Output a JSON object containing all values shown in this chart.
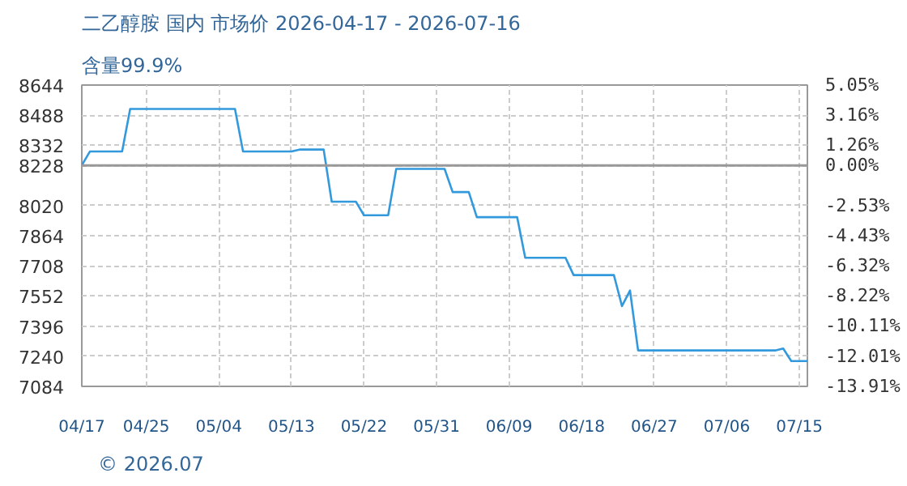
{
  "chart_data": {
    "type": "line",
    "title": "二乙醇胺 国内 市场价 2026-04-17 - 2026-07-16",
    "subtitle": "含量99.9%",
    "x": [
      "2026-04-17",
      "2026-04-18",
      "2026-04-22",
      "2026-04-23",
      "2026-05-06",
      "2026-05-07",
      "2026-05-13",
      "2026-05-14",
      "2026-05-17",
      "2026-05-18",
      "2026-05-21",
      "2026-05-22",
      "2026-05-25",
      "2026-05-26",
      "2026-06-01",
      "2026-06-02",
      "2026-06-04",
      "2026-06-05",
      "2026-06-10",
      "2026-06-11",
      "2026-06-16",
      "2026-06-17",
      "2026-06-22",
      "2026-06-23",
      "2026-06-24",
      "2026-06-25",
      "2026-07-12",
      "2026-07-13",
      "2026-07-14",
      "2026-07-16"
    ],
    "series": [
      {
        "color": "#3399dd",
        "values": [
          8228,
          8300,
          8300,
          8520,
          8520,
          8300,
          8300,
          8310,
          8310,
          8040,
          8040,
          7970,
          7970,
          8210,
          8210,
          8090,
          8090,
          7960,
          7960,
          7750,
          7750,
          7660,
          7660,
          7500,
          7580,
          7270,
          7270,
          7280,
          7215,
          7215
        ]
      }
    ],
    "xlim": [
      "2026-04-17",
      "2026-07-16"
    ],
    "xticks": [
      {
        "value": "2026-04-17",
        "label": "04/17"
      },
      {
        "value": "2026-04-25",
        "label": "04/25"
      },
      {
        "value": "2026-05-04",
        "label": "05/04"
      },
      {
        "value": "2026-05-13",
        "label": "05/13"
      },
      {
        "value": "2026-05-22",
        "label": "05/22"
      },
      {
        "value": "2026-05-31",
        "label": "05/31"
      },
      {
        "value": "2026-06-09",
        "label": "06/09"
      },
      {
        "value": "2026-06-18",
        "label": "06/18"
      },
      {
        "value": "2026-06-27",
        "label": "06/27"
      },
      {
        "value": "2026-07-06",
        "label": "07/06"
      },
      {
        "value": "2026-07-15",
        "label": "07/15"
      }
    ],
    "ylim": [
      7084,
      8644
    ],
    "yticks": [
      7084,
      7240,
      7396,
      7552,
      7708,
      7864,
      8020,
      8228,
      8332,
      8488,
      8644
    ],
    "y2lim": [
      -13.91,
      5.05
    ],
    "y2ticks": [
      {
        "value": -13.91,
        "label": "-13.91%"
      },
      {
        "value": -12.01,
        "label": "-12.01%"
      },
      {
        "value": -10.11,
        "label": "-10.11%"
      },
      {
        "value": -8.22,
        "label": "-8.22%"
      },
      {
        "value": -6.32,
        "label": "-6.32%"
      },
      {
        "value": -4.43,
        "label": "-4.43%"
      },
      {
        "value": -2.53,
        "label": "-2.53%"
      },
      {
        "value": 0,
        "label": "0.00%"
      },
      {
        "value": 1.26,
        "label": "1.26%"
      },
      {
        "value": 3.16,
        "label": "3.16%"
      },
      {
        "value": 5.05,
        "label": "5.05%"
      }
    ],
    "ref_lines": [
      {
        "axis": "y",
        "value": 8228,
        "color": "#999999"
      }
    ],
    "grid": true,
    "line_style": "solid",
    "annotations": [
      "© 2026.07"
    ]
  }
}
